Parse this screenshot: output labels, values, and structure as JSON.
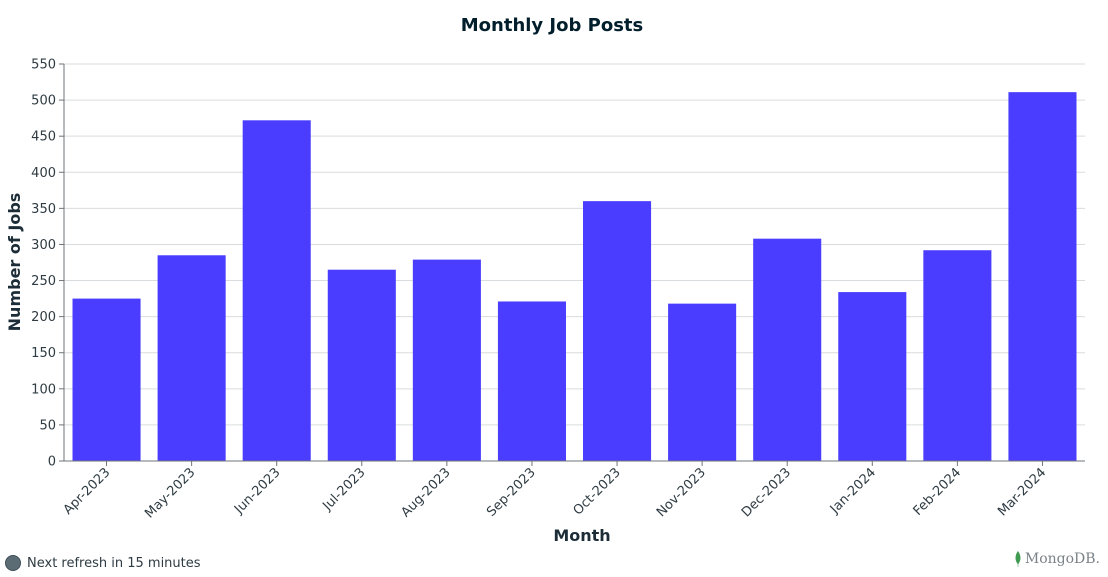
{
  "chart_data": {
    "type": "bar",
    "title": "Monthly Job Posts",
    "xlabel": "Month",
    "ylabel": "Number of Jobs",
    "categories": [
      "Apr-2023",
      "May-2023",
      "Jun-2023",
      "Jul-2023",
      "Aug-2023",
      "Sep-2023",
      "Oct-2023",
      "Nov-2023",
      "Dec-2023",
      "Jan-2024",
      "Feb-2024",
      "Mar-2024"
    ],
    "values": [
      225,
      285,
      472,
      265,
      279,
      221,
      360,
      218,
      308,
      234,
      292,
      511
    ],
    "ylim": [
      0,
      550
    ],
    "yticks": [
      0,
      50,
      100,
      150,
      200,
      250,
      300,
      350,
      400,
      450,
      500,
      550
    ],
    "grid": true,
    "bar_color": "#4a3dff"
  },
  "footer": {
    "refresh_text": "Next refresh in 15 minutes",
    "brand": "MongoDB."
  }
}
